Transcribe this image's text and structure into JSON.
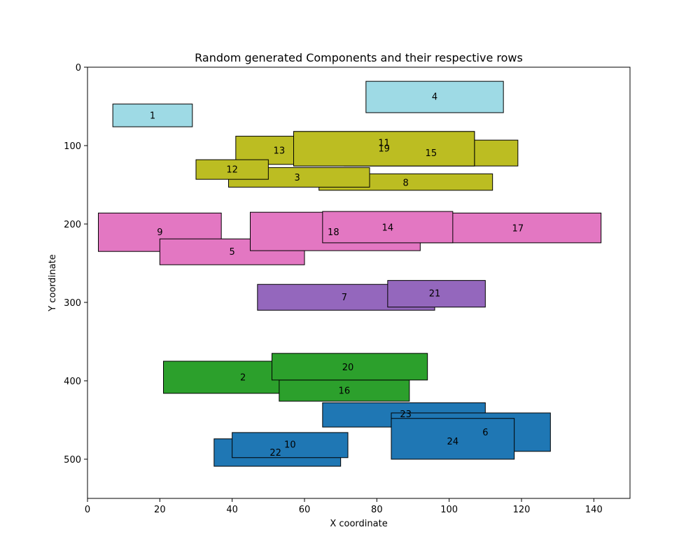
{
  "chart_data": {
    "type": "rectangles",
    "title": "Random generated Components and their respective rows",
    "xlabel": "X coordinate",
    "ylabel": "Y coordinate",
    "xlim": [
      0,
      150
    ],
    "ylim": [
      550,
      0
    ],
    "y_inverted": true,
    "grid": false,
    "x_ticks": [
      0,
      20,
      40,
      60,
      80,
      100,
      120,
      140
    ],
    "y_ticks": [
      0,
      100,
      200,
      300,
      400,
      500
    ],
    "row_colors": {
      "cyan": "#9edae5",
      "olive": "#bcbd22",
      "pink": "#e377c2",
      "purple": "#9467bd",
      "green": "#2ca02c",
      "blue": "#1f77b4"
    },
    "components": [
      {
        "id": "4",
        "x0": 77,
        "x1": 115,
        "y0": 18,
        "y1": 58,
        "row": "cyan"
      },
      {
        "id": "1",
        "x0": 7,
        "x1": 29,
        "y0": 47,
        "y1": 76,
        "row": "cyan"
      },
      {
        "id": "15",
        "x0": 71,
        "x1": 119,
        "y0": 93,
        "y1": 126,
        "row": "olive"
      },
      {
        "id": "13",
        "x0": 41,
        "x1": 67,
        "y0": 88,
        "y1": 124,
        "row": "olive"
      },
      {
        "id": "8",
        "x0": 64,
        "x1": 112,
        "y0": 136,
        "y1": 157,
        "row": "olive"
      },
      {
        "id": "3",
        "x0": 39,
        "x1": 78,
        "y0": 128,
        "y1": 153,
        "row": "olive"
      },
      {
        "id": "12",
        "x0": 30,
        "x1": 50,
        "y0": 118,
        "y1": 143,
        "row": "olive"
      },
      {
        "id": "11",
        "x0": 57,
        "x1": 107,
        "y0": 82,
        "y1": 126,
        "row": "olive"
      },
      {
        "id": "19",
        "x0": 57,
        "x1": 107,
        "y0": 82,
        "y1": 126,
        "row": "olive"
      },
      {
        "id": "9",
        "x0": 3,
        "x1": 37,
        "y0": 186,
        "y1": 235,
        "row": "pink"
      },
      {
        "id": "5",
        "x0": 20,
        "x1": 60,
        "y0": 219,
        "y1": 252,
        "row": "pink"
      },
      {
        "id": "17",
        "x0": 60,
        "x1": 142,
        "y0": 186,
        "y1": 224,
        "row": "pink"
      },
      {
        "id": "18",
        "x0": 45,
        "x1": 92,
        "y0": 185,
        "y1": 234,
        "row": "pink"
      },
      {
        "id": "14",
        "x0": 65,
        "x1": 101,
        "y0": 184,
        "y1": 224,
        "row": "pink"
      },
      {
        "id": "7",
        "x0": 47,
        "x1": 96,
        "y0": 277,
        "y1": 310,
        "row": "purple"
      },
      {
        "id": "21",
        "x0": 83,
        "x1": 110,
        "y0": 272,
        "y1": 306,
        "row": "purple"
      },
      {
        "id": "2",
        "x0": 21,
        "x1": 62,
        "y0": 375,
        "y1": 416,
        "row": "green"
      },
      {
        "id": "16",
        "x0": 53,
        "x1": 89,
        "y0": 399,
        "y1": 426,
        "row": "green"
      },
      {
        "id": "20",
        "x0": 51,
        "x1": 94,
        "y0": 365,
        "y1": 399,
        "row": "green"
      },
      {
        "id": "23",
        "x0": 65,
        "x1": 110,
        "y0": 428,
        "y1": 459,
        "row": "blue"
      },
      {
        "id": "6",
        "x0": 84,
        "x1": 128,
        "y0": 441,
        "y1": 490,
        "row": "blue"
      },
      {
        "id": "24",
        "x0": 84,
        "x1": 118,
        "y0": 448,
        "y1": 500,
        "row": "blue"
      },
      {
        "id": "22",
        "x0": 35,
        "x1": 70,
        "y0": 474,
        "y1": 509,
        "row": "blue"
      },
      {
        "id": "10",
        "x0": 40,
        "x1": 72,
        "y0": 466,
        "y1": 498,
        "row": "blue"
      }
    ],
    "label_positions": {
      "4": [
        96,
        37
      ],
      "1": [
        18,
        61
      ],
      "15": [
        95,
        109
      ],
      "13": [
        53,
        106
      ],
      "8": [
        88,
        147
      ],
      "3": [
        58,
        140
      ],
      "12": [
        40,
        130
      ],
      "11": [
        82,
        96
      ],
      "19": [
        82,
        103
      ],
      "9": [
        20,
        210
      ],
      "5": [
        40,
        235
      ],
      "17": [
        119,
        205
      ],
      "18": [
        68,
        210
      ],
      "14": [
        83,
        204
      ],
      "7": [
        71,
        293
      ],
      "21": [
        96,
        288
      ],
      "2": [
        43,
        395
      ],
      "16": [
        71,
        412
      ],
      "20": [
        72,
        382
      ],
      "23": [
        88,
        442
      ],
      "6": [
        110,
        465
      ],
      "24": [
        101,
        477
      ],
      "22": [
        52,
        491
      ],
      "10": [
        56,
        481
      ]
    }
  }
}
